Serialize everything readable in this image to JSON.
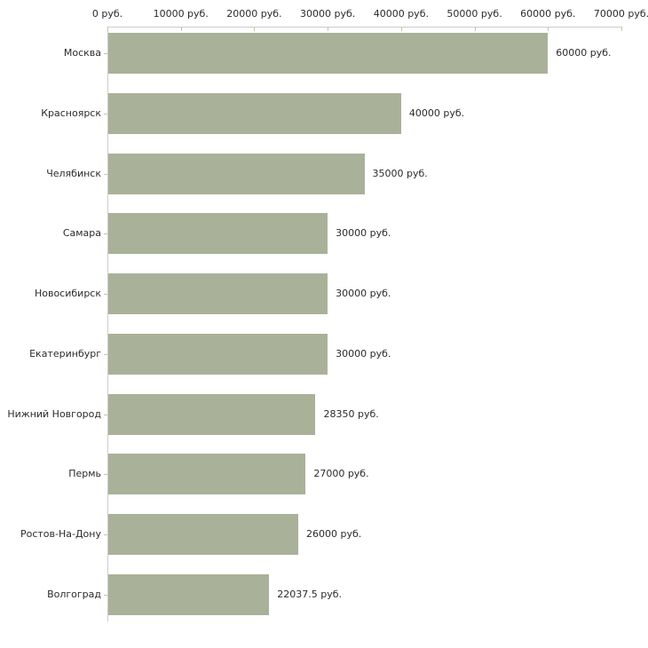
{
  "chart_data": {
    "type": "bar",
    "orientation": "horizontal",
    "categories": [
      "Москва",
      "Красноярск",
      "Челябинск",
      "Самара",
      "Новосибирск",
      "Екатеринбург",
      "Нижний Новгород",
      "Пермь",
      "Ростов-На-Дону",
      "Волгоград"
    ],
    "values": [
      60000,
      40000,
      35000,
      30000,
      30000,
      30000,
      28350,
      27000,
      26000,
      22037.5
    ],
    "value_labels": [
      "60000 руб.",
      "40000 руб.",
      "35000 руб.",
      "30000 руб.",
      "30000 руб.",
      "30000 руб.",
      "28350 руб.",
      "27000 руб.",
      "26000 руб.",
      "22037.5 руб."
    ],
    "x_axis": {
      "position": "top",
      "min": 0,
      "max": 70000,
      "ticks": [
        0,
        10000,
        20000,
        30000,
        40000,
        50000,
        60000,
        70000
      ],
      "tick_labels": [
        "0 руб.",
        "10000 руб.",
        "20000 руб.",
        "30000 руб.",
        "40000 руб.",
        "50000 руб.",
        "60000 руб.",
        "70000 руб."
      ]
    },
    "grid": false,
    "legend": false,
    "colors": {
      "bar": "#aab199",
      "axis_line": "#cccccc",
      "tick_mark": "#c6c6a0",
      "text": "#2b2b2b",
      "background": "#ffffff"
    }
  }
}
